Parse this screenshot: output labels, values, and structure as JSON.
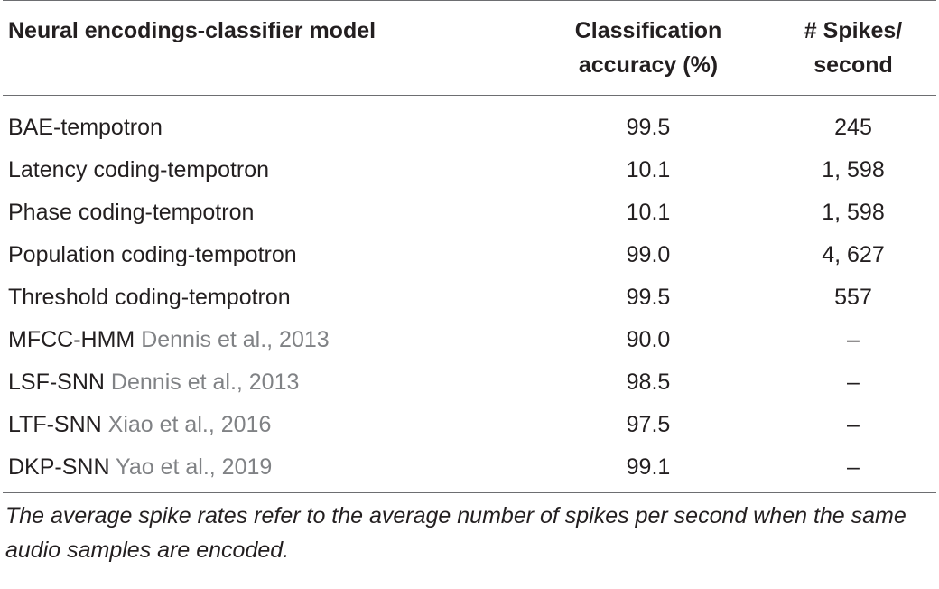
{
  "table": {
    "headers": {
      "model": "Neural encodings-classifier model",
      "accuracy_line1": "Classification",
      "accuracy_line2": "accuracy (%)",
      "spikes_line1": "# Spikes/",
      "spikes_line2": "second"
    },
    "rows": [
      {
        "model": "BAE-tempotron",
        "citation": "",
        "accuracy": "99.5",
        "spikes": "245"
      },
      {
        "model": "Latency coding-tempotron",
        "citation": "",
        "accuracy": "10.1",
        "spikes": "1, 598"
      },
      {
        "model": "Phase coding-tempotron",
        "citation": "",
        "accuracy": "10.1",
        "spikes": "1, 598"
      },
      {
        "model": "Population coding-tempotron",
        "citation": "",
        "accuracy": "99.0",
        "spikes": "4, 627"
      },
      {
        "model": "Threshold coding-tempotron",
        "citation": "",
        "accuracy": "99.5",
        "spikes": "557"
      },
      {
        "model": "MFCC-HMM",
        "citation": "Dennis et al., 2013",
        "accuracy": "90.0",
        "spikes": "–"
      },
      {
        "model": "LSF-SNN",
        "citation": "Dennis et al., 2013",
        "accuracy": "98.5",
        "spikes": "–"
      },
      {
        "model": "LTF-SNN",
        "citation": "Xiao et al., 2016",
        "accuracy": "97.5",
        "spikes": "–"
      },
      {
        "model": "DKP-SNN",
        "citation": "Yao et al., 2019",
        "accuracy": "99.1",
        "spikes": "–"
      }
    ],
    "footnote": "The average spike rates refer to the average number of spikes per second when the same audio samples are encoded."
  },
  "colors": {
    "text": "#231f20",
    "citation": "#808285",
    "rule": "#6d6e71"
  }
}
